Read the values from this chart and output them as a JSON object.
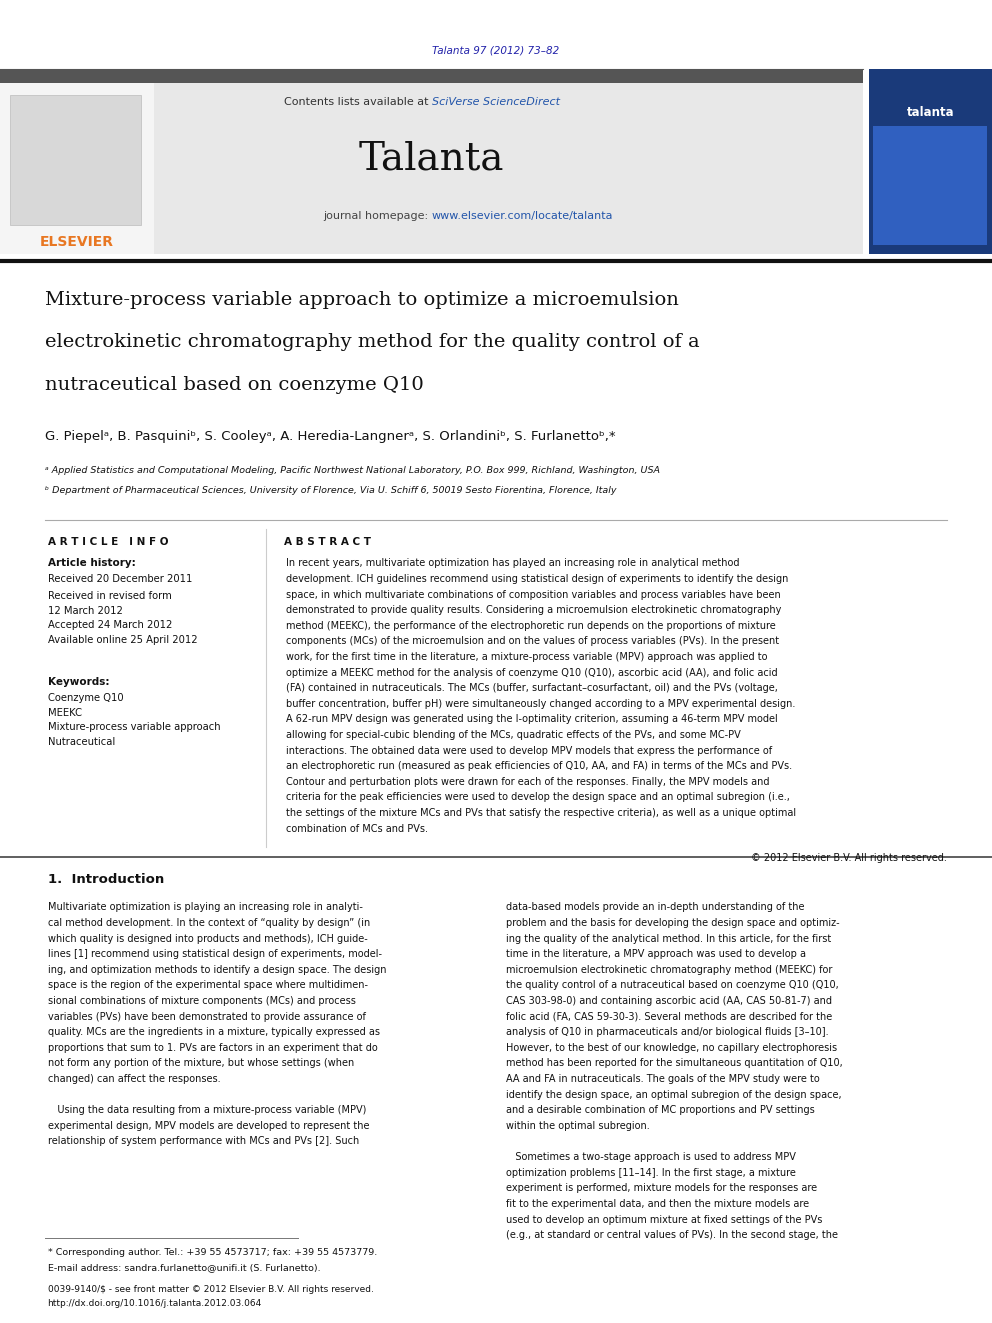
{
  "page_width": 9.92,
  "page_height": 13.23,
  "bg_color": "#ffffff",
  "journal_ref": "Talanta 97 (2012) 73–82",
  "journal_ref_color": "#2222aa",
  "header_bg": "#e8e8e8",
  "journal_name": "Talanta",
  "homepage_url": "www.elsevier.com/locate/talanta",
  "elsevier_color": "#E87722",
  "link_color": "#2255aa",
  "article_info_header": "A R T I C L E   I N F O",
  "abstract_header": "A B S T R A C T",
  "affil_a": "ᵃ Applied Statistics and Computational Modeling, Pacific Northwest National Laboratory, P.O. Box 999, Richland, Washington, USA",
  "affil_b": "ᵇ Department of Pharmaceutical Sciences, University of Florence, Via U. Schiff 6, 50019 Sesto Fiorentina, Florence, Italy",
  "abstract_lines": [
    "In recent years, multivariate optimization has played an increasing role in analytical method",
    "development. ICH guidelines recommend using statistical design of experiments to identify the design",
    "space, in which multivariate combinations of composition variables and process variables have been",
    "demonstrated to provide quality results. Considering a microemulsion electrokinetic chromatography",
    "method (MEEKC), the performance of the electrophoretic run depends on the proportions of mixture",
    "components (MCs) of the microemulsion and on the values of process variables (PVs). In the present",
    "work, for the first time in the literature, a mixture-process variable (MPV) approach was applied to",
    "optimize a MEEKC method for the analysis of coenzyme Q10 (Q10), ascorbic acid (AA), and folic acid",
    "(FA) contained in nutraceuticals. The MCs (buffer, surfactant–cosurfactant, oil) and the PVs (voltage,",
    "buffer concentration, buffer pH) were simultaneously changed according to a MPV experimental design.",
    "A 62-run MPV design was generated using the I-optimality criterion, assuming a 46-term MPV model",
    "allowing for special-cubic blending of the MCs, quadratic effects of the PVs, and some MC-PV",
    "interactions. The obtained data were used to develop MPV models that express the performance of",
    "an electrophoretic run (measured as peak efficiencies of Q10, AA, and FA) in terms of the MCs and PVs.",
    "Contour and perturbation plots were drawn for each of the responses. Finally, the MPV models and",
    "criteria for the peak efficiencies were used to develop the design space and an optimal subregion (i.e.,",
    "the settings of the mixture MCs and PVs that satisfy the respective criteria), as well as a unique optimal",
    "combination of MCs and PVs."
  ],
  "col1_lines": [
    "Multivariate optimization is playing an increasing role in analyti-",
    "cal method development. In the context of “quality by design” (in",
    "which quality is designed into products and methods), ICH guide-",
    "lines [1] recommend using statistical design of experiments, model-",
    "ing, and optimization methods to identify a design space. The design",
    "space is the region of the experimental space where multidimen-",
    "sional combinations of mixture components (MCs) and process",
    "variables (PVs) have been demonstrated to provide assurance of",
    "quality. MCs are the ingredients in a mixture, typically expressed as",
    "proportions that sum to 1. PVs are factors in an experiment that do",
    "not form any portion of the mixture, but whose settings (when",
    "changed) can affect the responses.",
    "",
    "   Using the data resulting from a mixture-process variable (MPV)",
    "experimental design, MPV models are developed to represent the",
    "relationship of system performance with MCs and PVs [2]. Such"
  ],
  "col2_lines": [
    "data-based models provide an in-depth understanding of the",
    "problem and the basis for developing the design space and optimiz-",
    "ing the quality of the analytical method. In this article, for the first",
    "time in the literature, a MPV approach was used to develop a",
    "microemulsion electrokinetic chromatography method (MEEKC) for",
    "the quality control of a nutraceutical based on coenzyme Q10 (Q10,",
    "CAS 303-98-0) and containing ascorbic acid (AA, CAS 50-81-7) and",
    "folic acid (FA, CAS 59-30-3). Several methods are described for the",
    "analysis of Q10 in pharmaceuticals and/or biological fluids [3–10].",
    "However, to the best of our knowledge, no capillary electrophoresis",
    "method has been reported for the simultaneous quantitation of Q10,",
    "AA and FA in nutraceuticals. The goals of the MPV study were to",
    "identify the design space, an optimal subregion of the design space,",
    "and a desirable combination of MC proportions and PV settings",
    "within the optimal subregion.",
    "",
    "   Sometimes a two-stage approach is used to address MPV",
    "optimization problems [11–14]. In the first stage, a mixture",
    "experiment is performed, mixture models for the responses are",
    "fit to the experimental data, and then the mixture models are",
    "used to develop an optimum mixture at fixed settings of the PVs",
    "(e.g., at standard or central values of PVs). In the second stage, the"
  ]
}
